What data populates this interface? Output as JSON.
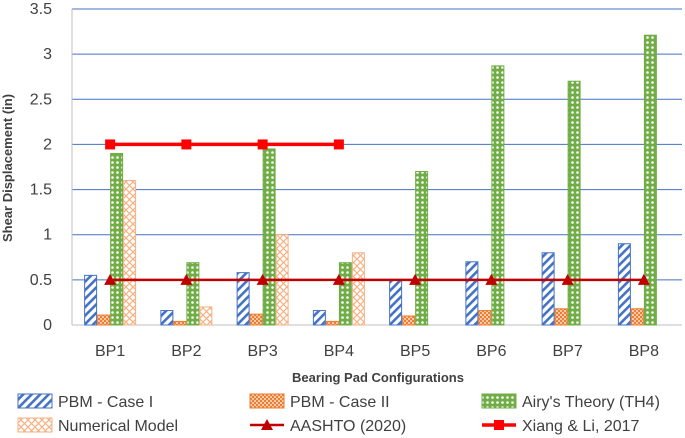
{
  "chart_data": {
    "type": "bar",
    "xlabel": "Bearing Pad Configurations",
    "ylabel": "Shear Displacement (in)",
    "ylim": [
      0,
      3.5
    ],
    "y_ticks": [
      "0",
      "0.5",
      "1",
      "1.5",
      "2",
      "2.5",
      "3",
      "3.5"
    ],
    "y_tick_values": [
      0,
      0.5,
      1,
      1.5,
      2,
      2.5,
      3,
      3.5
    ],
    "grid": true,
    "legend_position": "bottom",
    "categories": [
      "BP1",
      "BP2",
      "BP3",
      "BP4",
      "BP5",
      "BP6",
      "BP7",
      "BP8"
    ],
    "series": [
      {
        "name": "PBM - Case I",
        "kind": "bar",
        "pattern": "diag-blue",
        "values": [
          0.55,
          0.16,
          0.58,
          0.16,
          0.5,
          0.7,
          0.8,
          0.9
        ]
      },
      {
        "name": "PBM - Case II",
        "kind": "bar",
        "pattern": "check-orange",
        "values": [
          0.11,
          0.04,
          0.12,
          0.04,
          0.1,
          0.16,
          0.18,
          0.18
        ]
      },
      {
        "name": "Airy's Theory (TH4)",
        "kind": "bar",
        "pattern": "dots-green",
        "values": [
          1.9,
          0.69,
          1.95,
          0.69,
          1.7,
          2.87,
          2.7,
          3.21
        ]
      },
      {
        "name": "Numerical Model",
        "kind": "bar",
        "pattern": "cross-salmon",
        "values": [
          1.6,
          0.2,
          1.0,
          0.8,
          null,
          null,
          null,
          null
        ]
      },
      {
        "name": "AASHTO (2020)",
        "kind": "line",
        "marker": "triangle",
        "color": "#c00000",
        "values": [
          0.5,
          0.5,
          0.5,
          0.5,
          0.5,
          0.5,
          0.5,
          0.5
        ]
      },
      {
        "name": "Xiang & Li, 2017",
        "kind": "line",
        "marker": "square",
        "color": "#ff0000",
        "values": [
          2.0,
          2.0,
          2.0,
          2.0,
          null,
          null,
          null,
          null
        ]
      }
    ],
    "colors": {
      "grid": "#4472c4",
      "axis": "#bfbfbf",
      "blue": "#4472c4",
      "orange": "#ed7d31",
      "green": "#70ad47",
      "salmon": "#f4b183"
    }
  }
}
